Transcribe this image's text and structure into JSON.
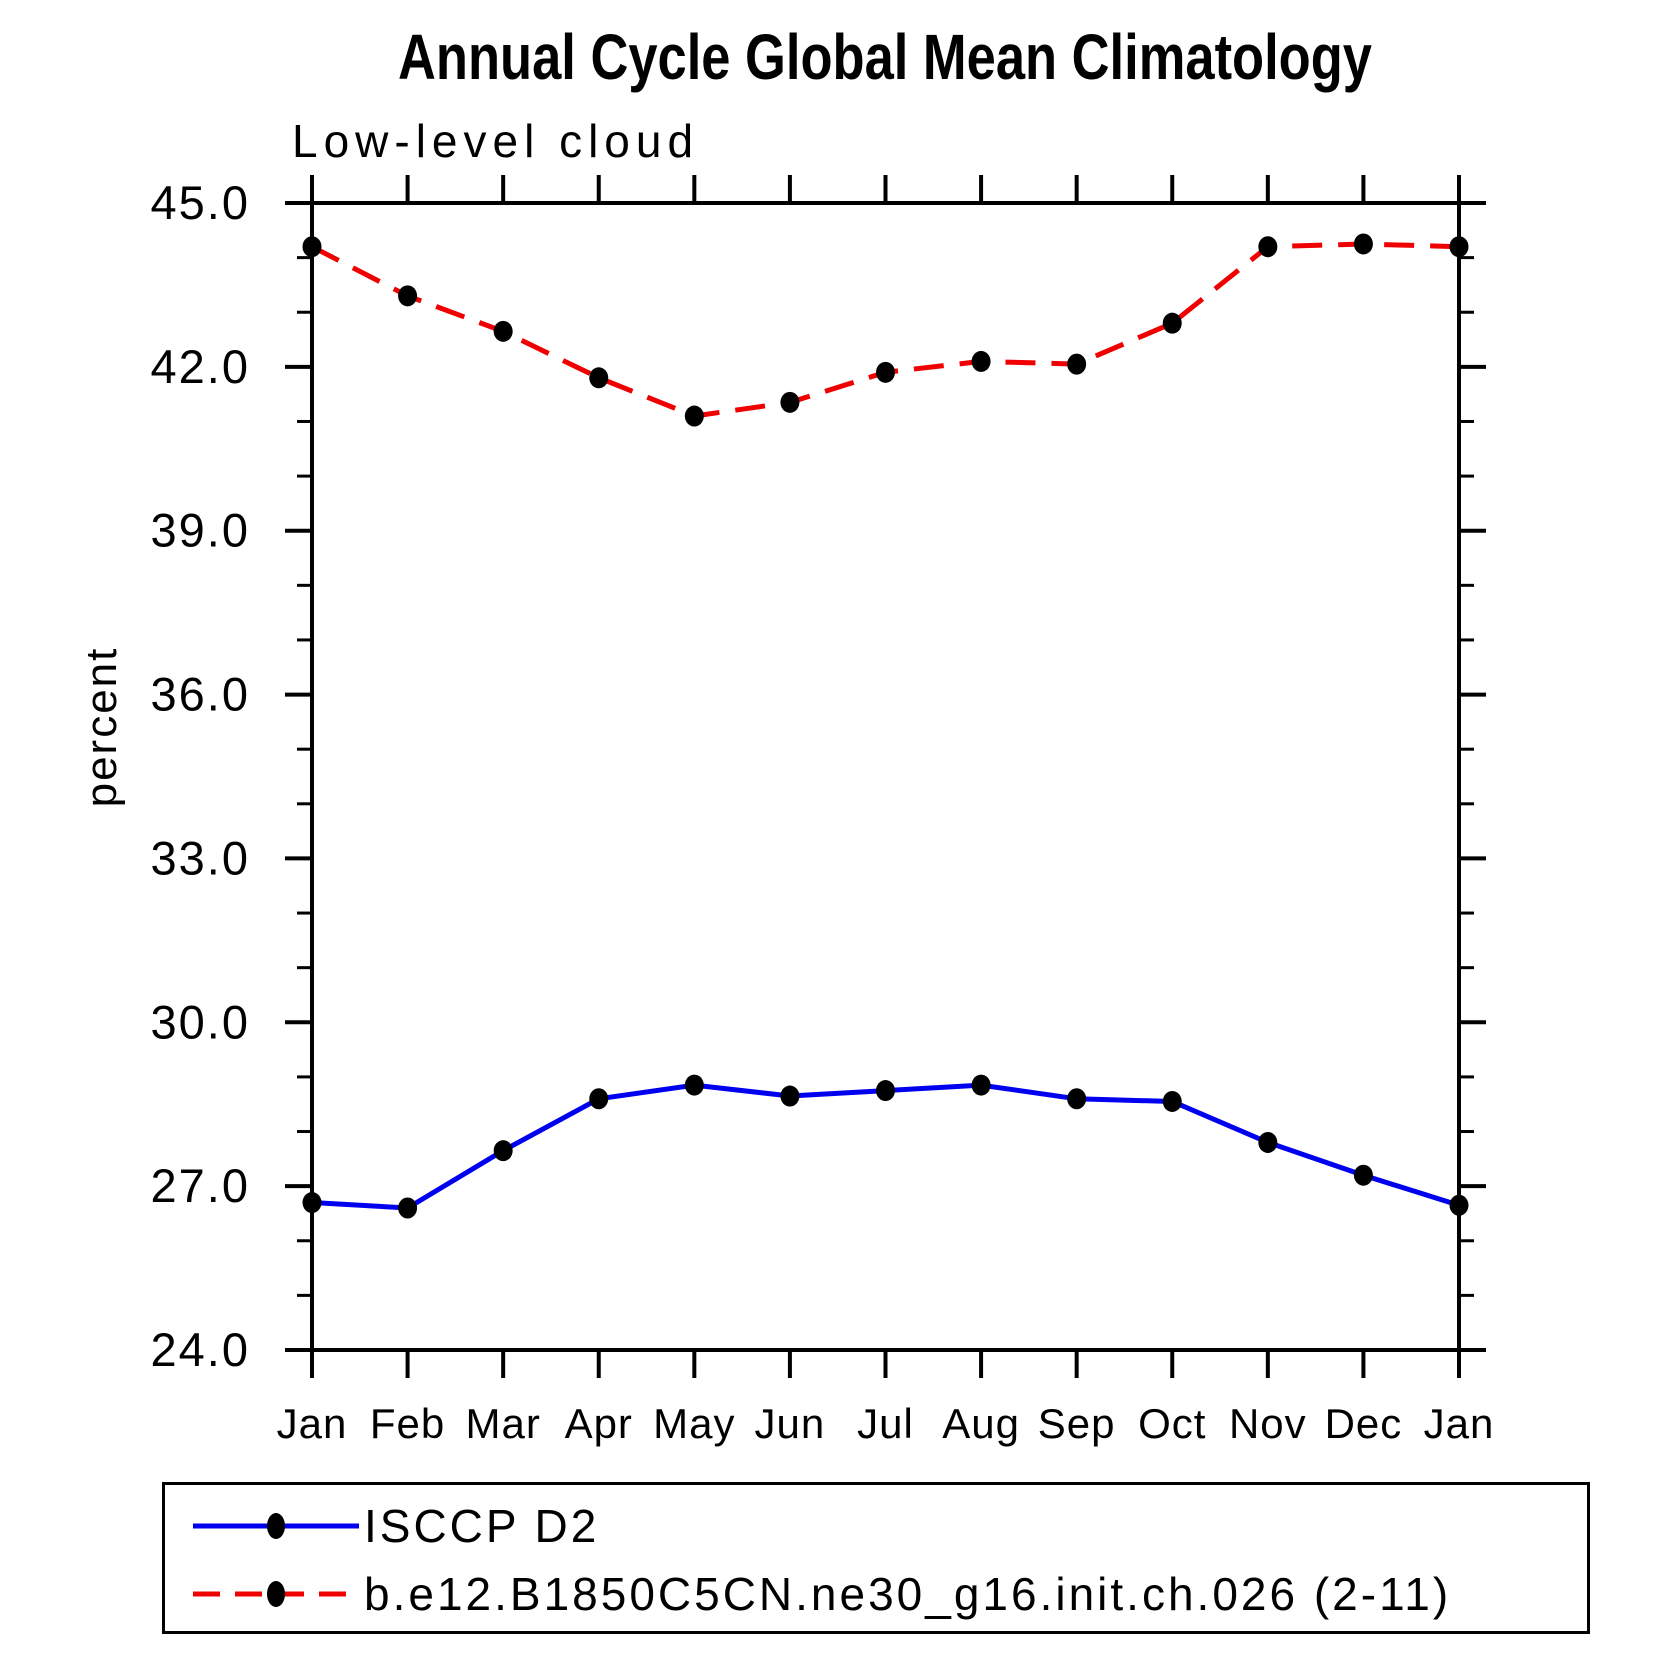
{
  "chart_data": {
    "type": "line",
    "title": "Annual Cycle Global Mean Climatology",
    "subtitle": "Low-level cloud",
    "xlabel": "",
    "ylabel": "percent",
    "categories": [
      "Jan",
      "Feb",
      "Mar",
      "Apr",
      "May",
      "Jun",
      "Jul",
      "Aug",
      "Sep",
      "Oct",
      "Nov",
      "Dec",
      "Jan"
    ],
    "ylim": [
      24.0,
      45.0
    ],
    "ytick_major_step": 3.0,
    "ytick_minor_step": 1.0,
    "ytick_labels": [
      "24.0",
      "27.0",
      "30.0",
      "33.0",
      "36.0",
      "39.0",
      "42.0",
      "45.0"
    ],
    "grid": false,
    "legend_position": "bottom-left-box",
    "frame_color": "#000000",
    "series": [
      {
        "name": "ISCCP D2",
        "color": "#0000f0",
        "line_style": "solid",
        "marker": "filled-circle",
        "marker_color": "#000000",
        "values": [
          26.7,
          26.6,
          27.65,
          28.6,
          28.85,
          28.65,
          28.75,
          28.85,
          28.6,
          28.55,
          27.8,
          27.2,
          26.65
        ]
      },
      {
        "name": "b.e12.B1850C5CN.ne30_g16.init.ch.026 (2-11)",
        "color": "#f00000",
        "line_style": "dashed",
        "marker": "filled-circle",
        "marker_color": "#000000",
        "values": [
          44.2,
          43.3,
          42.65,
          41.8,
          41.1,
          41.35,
          41.9,
          42.1,
          42.05,
          42.8,
          44.2,
          44.25,
          44.2
        ]
      }
    ]
  }
}
